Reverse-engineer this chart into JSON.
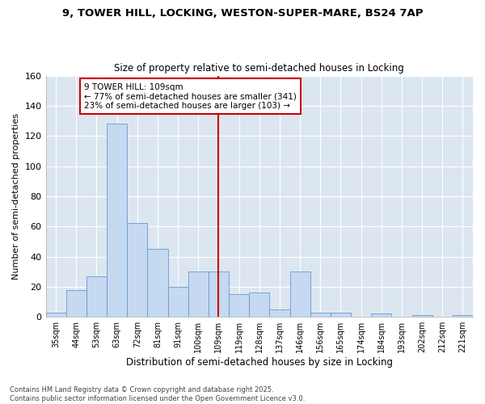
{
  "title_line1": "9, TOWER HILL, LOCKING, WESTON-SUPER-MARE, BS24 7AP",
  "title_line2": "Size of property relative to semi-detached houses in Locking",
  "xlabel": "Distribution of semi-detached houses by size in Locking",
  "ylabel": "Number of semi-detached properties",
  "categories": [
    "35sqm",
    "44sqm",
    "53sqm",
    "63sqm",
    "72sqm",
    "81sqm",
    "91sqm",
    "100sqm",
    "109sqm",
    "119sqm",
    "128sqm",
    "137sqm",
    "146sqm",
    "156sqm",
    "165sqm",
    "174sqm",
    "184sqm",
    "193sqm",
    "202sqm",
    "212sqm",
    "221sqm"
  ],
  "values": [
    3,
    18,
    27,
    128,
    62,
    45,
    20,
    30,
    30,
    15,
    16,
    5,
    30,
    3,
    3,
    0,
    2,
    0,
    1,
    0,
    1
  ],
  "bar_color": "#c5d9f1",
  "bar_edge_color": "#6699cc",
  "bg_color": "#dce6f1",
  "grid_color": "#ffffff",
  "annotation_text": "9 TOWER HILL: 109sqm\n← 77% of semi-detached houses are smaller (341)\n23% of semi-detached houses are larger (103) →",
  "annotation_box_color": "#ffffff",
  "annotation_box_edge": "#cc0000",
  "vline_index": 8,
  "vline_color": "#cc0000",
  "ylim": [
    0,
    160
  ],
  "yticks": [
    0,
    20,
    40,
    60,
    80,
    100,
    120,
    140,
    160
  ],
  "fig_bg": "#ffffff",
  "footer_text": "Contains HM Land Registry data © Crown copyright and database right 2025.\nContains public sector information licensed under the Open Government Licence v3.0."
}
